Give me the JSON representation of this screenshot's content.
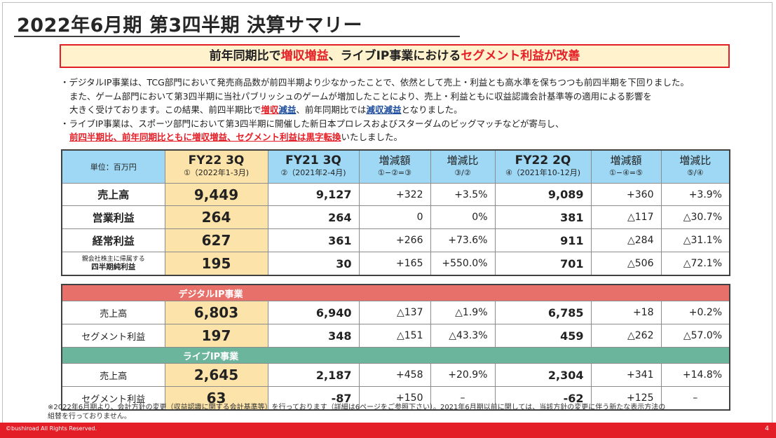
{
  "title": "2022年6月期 第3四半期 決算サマリー",
  "banner": {
    "p1": "前年同期比で",
    "p2": "増収増益",
    "p3": "、ライブIP事業における",
    "p4": "セグメント利益が改善"
  },
  "bullets": {
    "b1_l1": "・デジタルIP事業は、TCG部門において発売商品数が前四半期より少なかったことで、依然として売上・利益とも高水準を保ちつつも前四半期を下回りました。",
    "b1_l2": "また、ゲーム部門において第3四半期に当社パブリッシュのゲームが増加したことにより、売上・利益ともに収益認識会計基準等の適用による影響を",
    "b1_l3a": "大きく受けております。この結果、前四半期比で",
    "b1_l3b": "増収",
    "b1_l3c": "減益",
    "b1_l3d": "、前年同期比では",
    "b1_l3e": "減収減益",
    "b1_l3f": "となりました。",
    "b2_l1": "・ライブIP事業は、スポーツ部門において第3四半期に開催した新日本プロレスおよびスターダムのビッグマッチなどが寄与し、",
    "b2_l2a": "前四半期比、前年同期比ともに増収増益、セグメント利益は黒字転換",
    "b2_l2b": "いたしました。"
  },
  "table": {
    "unit": "単位：百万円",
    "h1": {
      "title": "FY22 3Q",
      "sub": "①（2022年1-3月)"
    },
    "h2": {
      "title": "FY21 3Q",
      "sub": "②（2021年2-4月)"
    },
    "h3": {
      "title": "増減額",
      "sub": "①−②=③"
    },
    "h4": {
      "title": "増減比",
      "sub": "③/②"
    },
    "h5": {
      "title": "FY22 2Q",
      "sub": "④（2021年10-12月)"
    },
    "h6": {
      "title": "増減額",
      "sub": "①−④=⑤"
    },
    "h7": {
      "title": "増減比",
      "sub": "⑤/④"
    },
    "rows": [
      {
        "label": "売上高",
        "v": [
          "9,449",
          "9,127",
          "+322",
          "+3.5%",
          "9,089",
          "+360",
          "+3.9%"
        ]
      },
      {
        "label": "営業利益",
        "v": [
          "264",
          "264",
          "0",
          "0%",
          "381",
          "△117",
          "△30.7%"
        ]
      },
      {
        "label": "経常利益",
        "v": [
          "627",
          "361",
          "+266",
          "+73.6%",
          "911",
          "△284",
          "△31.1%"
        ]
      },
      {
        "label_sub": "親会社株主に帰属する",
        "label": "四半期純利益",
        "v": [
          "195",
          "30",
          "+165",
          "+550.0%",
          "701",
          "△506",
          "△72.1%"
        ]
      }
    ]
  },
  "segments": {
    "digital": {
      "name": "デジタルIP事業",
      "rows": [
        {
          "label": "売上高",
          "v": [
            "6,803",
            "6,940",
            "△137",
            "△1.9%",
            "6,785",
            "+18",
            "+0.2%"
          ]
        },
        {
          "label": "セグメント利益",
          "v": [
            "197",
            "348",
            "△151",
            "△43.3%",
            "459",
            "△262",
            "△57.0%"
          ]
        }
      ]
    },
    "live": {
      "name": "ライブIP事業",
      "rows": [
        {
          "label": "売上高",
          "v": [
            "2,645",
            "2,187",
            "+458",
            "+20.9%",
            "2,304",
            "+341",
            "+14.8%"
          ]
        },
        {
          "label": "セグメント利益",
          "v": [
            "63",
            "-87",
            "+150",
            "–",
            "-62",
            "+125",
            "–"
          ]
        }
      ]
    }
  },
  "footnote": {
    "l1": "※2022年6月期より、会計方針の変更（収益認識に関する会計基準等）を行っております（詳細は6ページをご参照下さい）。2021年6月期以前に関しては、当該方針の変更に伴う新たな表示方法の",
    "l2": "組替を行っておりません。"
  },
  "footer": {
    "copyright": "©bushiroad All Rights Reserved.",
    "page": "4"
  },
  "colors": {
    "accent_red": "#e41e26",
    "header_blue": "#9ed8f5",
    "highlight": "#fbe3a9",
    "digital": "#e8706a",
    "live": "#6bb59d"
  }
}
